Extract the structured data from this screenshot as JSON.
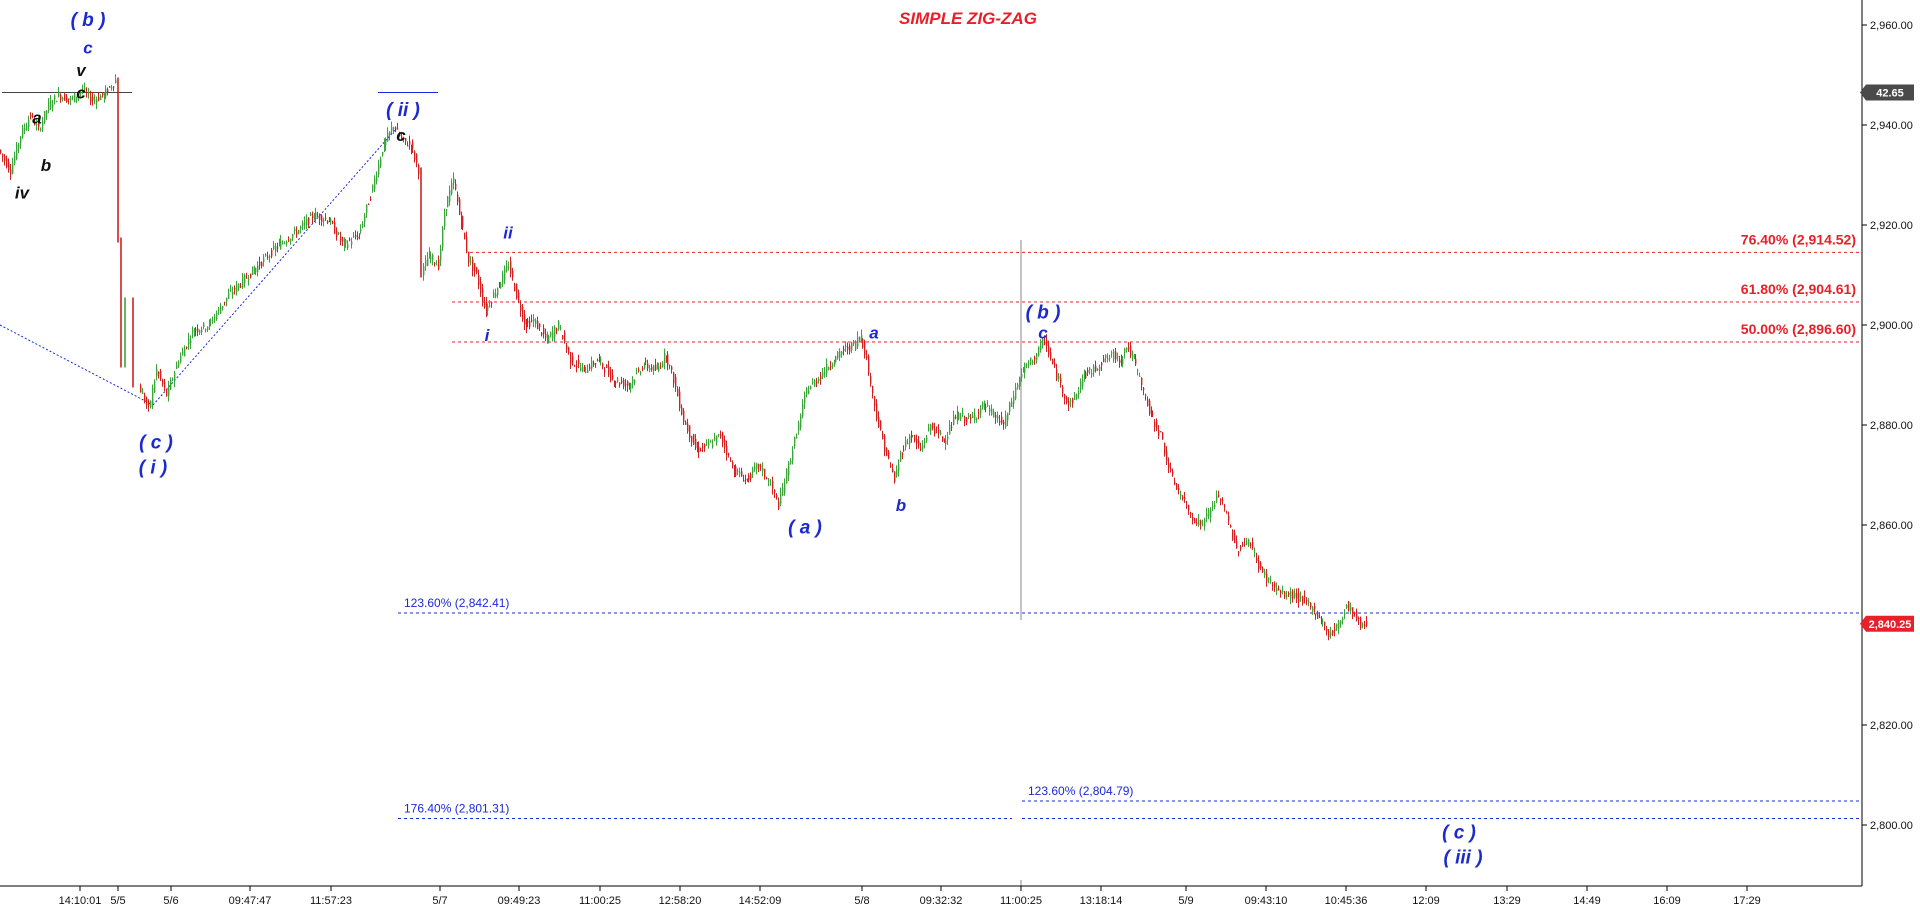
{
  "chart_data": {
    "type": "line",
    "title": "SIMPLE ZIG-ZAG",
    "subtitle": "",
    "xlabel": "",
    "ylabel": "",
    "ylim": [
      2790,
      2963
    ],
    "xlim": [
      0,
      1860
    ],
    "grid": false,
    "legend": "none",
    "y_ticks": [
      {
        "value": 2960,
        "label": "2,960.00"
      },
      {
        "value": 2940,
        "label": "2,940.00"
      },
      {
        "value": 2920,
        "label": "2,920.00"
      },
      {
        "value": 2900,
        "label": "2,900.00"
      },
      {
        "value": 2880,
        "label": "2,880.00"
      },
      {
        "value": 2860,
        "label": "2,860.00"
      },
      {
        "value": 2840,
        "label": "2,840.00"
      },
      {
        "value": 2820,
        "label": "2,820.00"
      },
      {
        "value": 2800,
        "label": "2,800.00"
      }
    ],
    "x_ticks": [
      {
        "pos": 80,
        "label": "14:10:01"
      },
      {
        "pos": 118,
        "label": "5/5"
      },
      {
        "pos": 171,
        "label": "5/6"
      },
      {
        "pos": 250,
        "label": "09:47:47"
      },
      {
        "pos": 331,
        "label": "11:57:23"
      },
      {
        "pos": 440,
        "label": "5/7"
      },
      {
        "pos": 519,
        "label": "09:49:23"
      },
      {
        "pos": 600,
        "label": "11:00:25"
      },
      {
        "pos": 680,
        "label": "12:58:20"
      },
      {
        "pos": 760,
        "label": "14:52:09"
      },
      {
        "pos": 862,
        "label": "5/8"
      },
      {
        "pos": 941,
        "label": "09:32:32"
      },
      {
        "pos": 1021,
        "label": "11:00:25"
      },
      {
        "pos": 1101,
        "label": "13:18:14"
      },
      {
        "pos": 1186,
        "label": "5/9"
      },
      {
        "pos": 1266,
        "label": "09:43:10"
      },
      {
        "pos": 1346,
        "label": "10:45:36"
      },
      {
        "pos": 1426,
        "label": "12:09"
      },
      {
        "pos": 1507,
        "label": "13:29"
      },
      {
        "pos": 1587,
        "label": "14:49"
      },
      {
        "pos": 1667,
        "label": "16:09"
      },
      {
        "pos": 1747,
        "label": "17:29"
      }
    ],
    "colors": {
      "up": "#3aa63a",
      "down": "#d42020",
      "wick": "#333333",
      "fib_red": "#e8202a",
      "fib_blue": "#1a2ad8",
      "wave_blue": "#1c2ad0",
      "wave_black": "#111111"
    },
    "series": [
      {
        "points": [
          [
            0,
            2935
          ],
          [
            12,
            2931
          ],
          [
            22,
            2938
          ],
          [
            32,
            2942
          ],
          [
            40,
            2939
          ],
          [
            50,
            2944
          ],
          [
            60,
            2946
          ],
          [
            72,
            2945
          ],
          [
            84,
            2947
          ],
          [
            94,
            2945
          ],
          [
            105,
            2946
          ],
          [
            117,
            2949
          ],
          [
            120,
            2917
          ],
          [
            124,
            2892
          ],
          [
            132,
            2905
          ],
          [
            140,
            2888
          ],
          [
            150,
            2883
          ],
          [
            158,
            2891
          ],
          [
            168,
            2886
          ],
          [
            180,
            2893
          ],
          [
            195,
            2899
          ],
          [
            210,
            2900
          ],
          [
            230,
            2906
          ],
          [
            255,
            2911
          ],
          [
            280,
            2916
          ],
          [
            300,
            2919
          ],
          [
            315,
            2922
          ],
          [
            330,
            2921
          ],
          [
            345,
            2916
          ],
          [
            360,
            2918
          ],
          [
            372,
            2926
          ],
          [
            385,
            2936
          ],
          [
            395,
            2940
          ],
          [
            403,
            2937
          ],
          [
            412,
            2936
          ],
          [
            420,
            2931
          ],
          [
            423,
            2910
          ],
          [
            430,
            2914
          ],
          [
            440,
            2912
          ],
          [
            447,
            2924
          ],
          [
            455,
            2929
          ],
          [
            462,
            2921
          ],
          [
            470,
            2913
          ],
          [
            478,
            2910
          ],
          [
            487,
            2903
          ],
          [
            500,
            2908
          ],
          [
            510,
            2912
          ],
          [
            518,
            2906
          ],
          [
            527,
            2900
          ],
          [
            535,
            2901
          ],
          [
            548,
            2897
          ],
          [
            560,
            2900
          ],
          [
            572,
            2893
          ],
          [
            585,
            2891
          ],
          [
            600,
            2893
          ],
          [
            615,
            2889
          ],
          [
            630,
            2888
          ],
          [
            645,
            2892
          ],
          [
            658,
            2891
          ],
          [
            667,
            2894
          ],
          [
            675,
            2889
          ],
          [
            685,
            2881
          ],
          [
            698,
            2875
          ],
          [
            710,
            2876
          ],
          [
            722,
            2878
          ],
          [
            735,
            2871
          ],
          [
            748,
            2869
          ],
          [
            760,
            2872
          ],
          [
            772,
            2868
          ],
          [
            780,
            2864
          ],
          [
            790,
            2872
          ],
          [
            800,
            2880
          ],
          [
            808,
            2887
          ],
          [
            818,
            2889
          ],
          [
            826,
            2891
          ],
          [
            835,
            2893
          ],
          [
            845,
            2895
          ],
          [
            855,
            2896
          ],
          [
            862,
            2898
          ],
          [
            868,
            2893
          ],
          [
            874,
            2886
          ],
          [
            880,
            2880
          ],
          [
            888,
            2874
          ],
          [
            896,
            2869
          ],
          [
            903,
            2875
          ],
          [
            912,
            2878
          ],
          [
            922,
            2875
          ],
          [
            932,
            2880
          ],
          [
            945,
            2877
          ],
          [
            958,
            2882
          ],
          [
            972,
            2881
          ],
          [
            985,
            2884
          ],
          [
            995,
            2882
          ],
          [
            1005,
            2880
          ],
          [
            1015,
            2886
          ],
          [
            1024,
            2891
          ],
          [
            1034,
            2893
          ],
          [
            1040,
            2895
          ],
          [
            1046,
            2897
          ],
          [
            1054,
            2892
          ],
          [
            1062,
            2888
          ],
          [
            1070,
            2884
          ],
          [
            1078,
            2886
          ],
          [
            1085,
            2890
          ],
          [
            1095,
            2891
          ],
          [
            1105,
            2893
          ],
          [
            1115,
            2894
          ],
          [
            1122,
            2893
          ],
          [
            1128,
            2896
          ],
          [
            1135,
            2893
          ],
          [
            1143,
            2888
          ],
          [
            1152,
            2882
          ],
          [
            1162,
            2878
          ],
          [
            1172,
            2870
          ],
          [
            1182,
            2866
          ],
          [
            1192,
            2862
          ],
          [
            1202,
            2860
          ],
          [
            1212,
            2863
          ],
          [
            1220,
            2866
          ],
          [
            1228,
            2862
          ],
          [
            1238,
            2855
          ],
          [
            1250,
            2857
          ],
          [
            1262,
            2851
          ],
          [
            1274,
            2848
          ],
          [
            1284,
            2846
          ],
          [
            1294,
            2846
          ],
          [
            1304,
            2845
          ],
          [
            1315,
            2843
          ],
          [
            1322,
            2841
          ],
          [
            1330,
            2838
          ],
          [
            1340,
            2840
          ],
          [
            1348,
            2844
          ],
          [
            1356,
            2842
          ],
          [
            1362,
            2840
          ],
          [
            1368,
            2840
          ]
        ]
      }
    ],
    "fib_levels": [
      {
        "label": "76.40% (2,914.52)",
        "value": 2914.52,
        "x_from": 470,
        "x_to": 1862,
        "color": "red"
      },
      {
        "label": "61.80% (2,904.61)",
        "value": 2904.61,
        "x_from": 452,
        "x_to": 1862,
        "color": "red"
      },
      {
        "label": "50.00% (2,896.60)",
        "value": 2896.6,
        "x_from": 452,
        "x_to": 1862,
        "color": "red"
      },
      {
        "label": "123.60% (2,842.41)",
        "value": 2842.41,
        "x_from": 398,
        "x_to": 1862,
        "color": "blue"
      },
      {
        "label": "123.60% (2,804.79)",
        "value": 2804.79,
        "x_from": 1022,
        "x_to": 1862,
        "color": "blue"
      },
      {
        "label": "176.40% (2,801.31)",
        "value": 2801.31,
        "x_from": 398,
        "x_to": 1012,
        "color": "blue"
      }
    ],
    "extra_level": {
      "value": 2801.31,
      "x_from": 1022,
      "x_to": 1862
    },
    "trend_lines": [
      {
        "points": [
          [
            0,
            2900
          ],
          [
            153,
            2884
          ]
        ]
      },
      {
        "points": [
          [
            153,
            2884
          ],
          [
            395,
            2939
          ]
        ]
      }
    ],
    "price_labels": [
      {
        "label": "42.65",
        "value": 2946.5,
        "color": "dark"
      },
      {
        "label": "2,840.25",
        "value": 2840.25,
        "color": "red"
      }
    ],
    "vertical_markers": [
      {
        "x": 1021,
        "y_from": 2917,
        "y_to": 2841
      }
    ],
    "wave_labels": [
      {
        "text": "( b )",
        "x": 88,
        "value": 2961,
        "color": "blue"
      },
      {
        "text": "c",
        "x": 88,
        "value": 2955.5,
        "color": "blue"
      },
      {
        "text": "v",
        "x": 81,
        "value": 2951,
        "color": "black"
      },
      {
        "text": "c",
        "x": 81,
        "value": 2946.5,
        "color": "black"
      },
      {
        "text": "a",
        "x": 37,
        "value": 2941.5,
        "color": "black"
      },
      {
        "text": "b",
        "x": 46,
        "value": 2932,
        "color": "black"
      },
      {
        "text": "iv",
        "x": 22,
        "value": 2926.5,
        "color": "black"
      },
      {
        "text": "( ii )",
        "x": 403,
        "value": 2943,
        "color": "blue"
      },
      {
        "text": "c",
        "x": 401,
        "value": 2938,
        "color": "black"
      },
      {
        "text": "ii",
        "x": 508,
        "value": 2918.5,
        "color": "blue"
      },
      {
        "text": "i",
        "x": 487,
        "value": 2898,
        "color": "blue"
      },
      {
        "text": "( c )",
        "x": 156,
        "value": 2876.5,
        "color": "blue"
      },
      {
        "text": "( i )",
        "x": 153,
        "value": 2871.5,
        "color": "blue"
      },
      {
        "text": "a",
        "x": 874,
        "value": 2898.5,
        "color": "blue"
      },
      {
        "text": "b",
        "x": 901,
        "value": 2864,
        "color": "blue"
      },
      {
        "text": "( a )",
        "x": 805,
        "value": 2859.5,
        "color": "blue"
      },
      {
        "text": "( b )",
        "x": 1043,
        "value": 2902.5,
        "color": "blue"
      },
      {
        "text": "c",
        "x": 1043,
        "value": 2898.5,
        "color": "blue"
      },
      {
        "text": "( c )",
        "x": 1459,
        "value": 2798.5,
        "color": "blue"
      },
      {
        "text": "( iii )",
        "x": 1463,
        "value": 2793.5,
        "color": "blue"
      }
    ]
  }
}
